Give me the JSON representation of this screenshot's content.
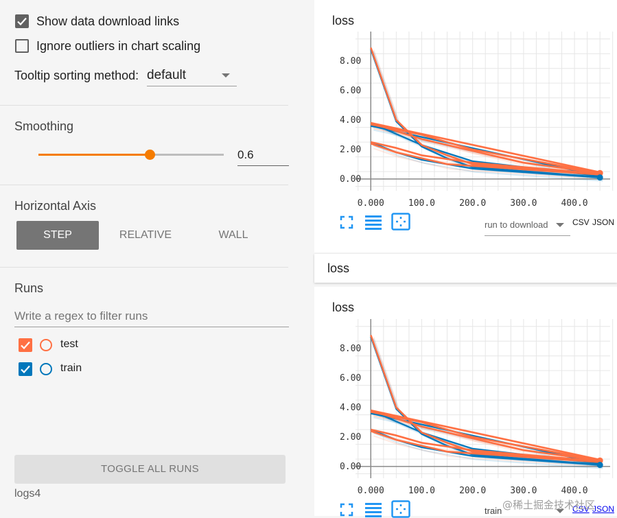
{
  "settings": {
    "show_download_links": "Show data download links",
    "ignore_outliers": "Ignore outliers in chart scaling",
    "tooltip_label": "Tooltip sorting method:",
    "tooltip_value": "default"
  },
  "smoothing": {
    "label": "Smoothing",
    "value": "0.6",
    "level": 0.6
  },
  "horizontal_axis": {
    "label": "Horizontal Axis",
    "options": [
      "STEP",
      "RELATIVE",
      "WALL"
    ],
    "selected": "STEP"
  },
  "runs": {
    "label": "Runs",
    "filter_placeholder": "Write a regex to filter runs",
    "items": [
      {
        "name": "test",
        "color": "#ff7043",
        "checked": true
      },
      {
        "name": "train",
        "color": "#0077bb",
        "checked": true
      }
    ],
    "toggle_all": "TOGGLE ALL RUNS",
    "logdir": "logs4"
  },
  "group_header": "loss",
  "charts": [
    {
      "title": "loss",
      "run_select": "run to download",
      "csv": "CSV",
      "json": "JSON"
    },
    {
      "title": "loss",
      "run_select": "train",
      "csv": "CSV",
      "json": "JSON"
    }
  ],
  "watermark": "@稀土掘金技术社区",
  "chart_data": [
    {
      "type": "line",
      "title": "loss",
      "xlim": [
        -30,
        470
      ],
      "ylim": [
        -0.8,
        10
      ],
      "x_ticks": [
        "0.000",
        "100.0",
        "200.0",
        "300.0",
        "400.0"
      ],
      "y_ticks": [
        "0.00",
        "2.00",
        "4.00",
        "6.00",
        "8.00"
      ],
      "grid": true,
      "series": [
        {
          "name": "test",
          "color": "#ff7043",
          "lines": [
            {
              "x": [
                0,
                50,
                100,
                150,
                200,
                450
              ],
              "y": [
                8.9,
                4.0,
                2.3,
                1.6,
                1.0,
                0.3
              ]
            },
            {
              "x": [
                0,
                100,
                200,
                300,
                450
              ],
              "y": [
                3.8,
                2.7,
                1.9,
                1.1,
                0.4
              ]
            },
            {
              "x": [
                0,
                50,
                100,
                200,
                450
              ],
              "y": [
                2.5,
                2.1,
                1.6,
                1.1,
                0.35
              ]
            },
            {
              "x": [
                0,
                100,
                200,
                450
              ],
              "y": [
                3.7,
                3.0,
                2.0,
                0.4
              ]
            },
            {
              "x": [
                0,
                50,
                150,
                450
              ],
              "y": [
                2.4,
                1.8,
                1.0,
                0.3
              ]
            },
            {
              "x": [
                0,
                450
              ],
              "y": [
                3.8,
                0.45
              ]
            }
          ]
        },
        {
          "name": "train",
          "color": "#0077bb",
          "lines": [
            {
              "x": [
                0,
                50,
                100,
                150,
                200,
                450
              ],
              "y": [
                8.8,
                3.9,
                2.2,
                1.4,
                0.8,
                0.12
              ]
            },
            {
              "x": [
                0,
                100,
                200,
                450
              ],
              "y": [
                3.8,
                2.3,
                1.2,
                0.2
              ]
            },
            {
              "x": [
                0,
                50,
                100,
                200,
                450
              ],
              "y": [
                2.5,
                1.8,
                1.3,
                0.7,
                0.1
              ]
            },
            {
              "x": [
                0,
                450
              ],
              "y": [
                3.6,
                0.2
              ]
            }
          ]
        }
      ]
    },
    {
      "type": "line",
      "title": "loss",
      "xlim": [
        -30,
        470
      ],
      "ylim": [
        -0.8,
        10
      ],
      "x_ticks": [
        "0.000",
        "100.0",
        "200.0",
        "300.0",
        "400.0"
      ],
      "y_ticks": [
        "0.00",
        "2.00",
        "4.00",
        "6.00",
        "8.00"
      ],
      "grid": true,
      "series": [
        {
          "name": "test",
          "color": "#ff7043",
          "lines": [
            {
              "x": [
                0,
                50,
                100,
                150,
                200,
                450
              ],
              "y": [
                8.9,
                4.0,
                2.3,
                1.6,
                1.0,
                0.3
              ]
            },
            {
              "x": [
                0,
                100,
                200,
                300,
                450
              ],
              "y": [
                3.8,
                2.7,
                1.9,
                1.1,
                0.4
              ]
            },
            {
              "x": [
                0,
                50,
                100,
                200,
                450
              ],
              "y": [
                2.5,
                2.1,
                1.6,
                1.1,
                0.35
              ]
            },
            {
              "x": [
                0,
                100,
                200,
                450
              ],
              "y": [
                3.7,
                3.0,
                2.0,
                0.4
              ]
            },
            {
              "x": [
                0,
                50,
                150,
                450
              ],
              "y": [
                2.4,
                1.8,
                1.0,
                0.3
              ]
            },
            {
              "x": [
                0,
                450
              ],
              "y": [
                3.8,
                0.45
              ]
            }
          ]
        },
        {
          "name": "train",
          "color": "#0077bb",
          "lines": [
            {
              "x": [
                0,
                50,
                100,
                150,
                200,
                450
              ],
              "y": [
                8.8,
                3.9,
                2.2,
                1.4,
                0.8,
                0.12
              ]
            },
            {
              "x": [
                0,
                100,
                200,
                450
              ],
              "y": [
                3.8,
                2.3,
                1.2,
                0.2
              ]
            },
            {
              "x": [
                0,
                50,
                100,
                200,
                450
              ],
              "y": [
                2.5,
                1.8,
                1.3,
                0.7,
                0.1
              ]
            },
            {
              "x": [
                0,
                450
              ],
              "y": [
                3.6,
                0.2
              ]
            }
          ]
        }
      ]
    }
  ]
}
